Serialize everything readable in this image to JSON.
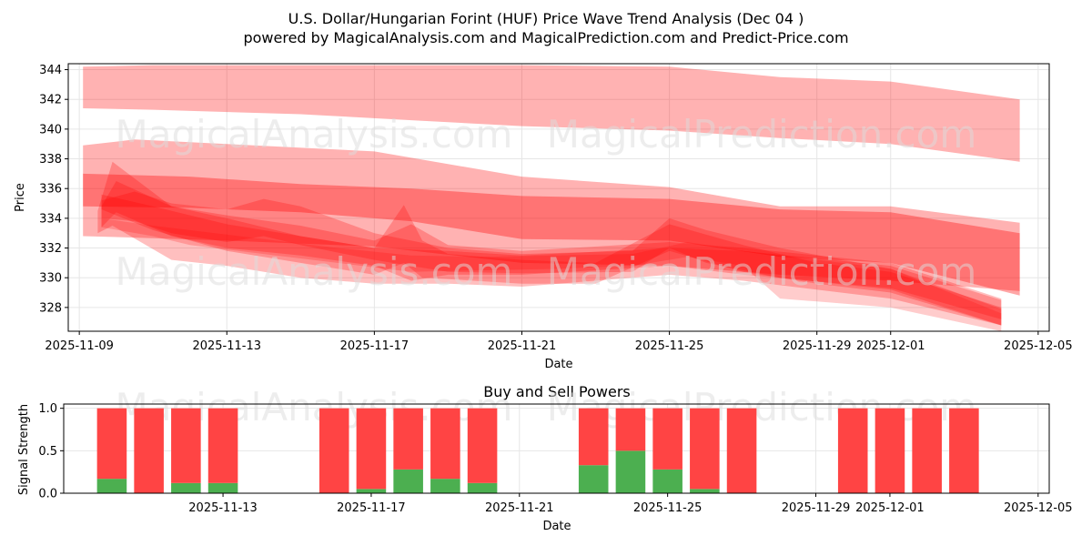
{
  "title_line1": "U.S. Dollar/Hungarian Forint (HUF) Price Wave Trend Analysis (Dec 04 )",
  "title_line2": "powered by MagicalAnalysis.com and MagicalPrediction.com and Predict-Price.com",
  "watermarks": [
    "MagicalAnalysis.com",
    "MagicalPrediction.com"
  ],
  "colors": {
    "band": "#ff0000",
    "buy": "#4caf50",
    "sell": "#ff4444",
    "grid": "#e6e6e6"
  },
  "chart_data": [
    {
      "type": "area",
      "title": "",
      "xlabel": "Date",
      "ylabel": "Price",
      "ylim": [
        326.4,
        344.4
      ],
      "xlim_days": [
        -0.3,
        26.3
      ],
      "y_ticks": [
        328,
        330,
        332,
        334,
        336,
        338,
        340,
        342,
        344
      ],
      "x_ticks": [
        {
          "day": 0,
          "label": "2025-11-09"
        },
        {
          "day": 4,
          "label": "2025-11-13"
        },
        {
          "day": 8,
          "label": "2025-11-17"
        },
        {
          "day": 12,
          "label": "2025-11-21"
        },
        {
          "day": 16,
          "label": "2025-11-25"
        },
        {
          "day": 20,
          "label": "2025-11-29"
        },
        {
          "day": 22,
          "label": "2025-12-01"
        },
        {
          "day": 26,
          "label": "2025-12-05"
        }
      ],
      "series": [
        {
          "name": "band-1",
          "opacity": 0.3,
          "x": [
            0.1,
            2,
            6,
            9,
            12,
            16,
            19,
            22,
            25.5
          ],
          "upper": [
            344.2,
            344.3,
            344.3,
            344.3,
            344.3,
            344.2,
            343.5,
            343.2,
            342.0
          ],
          "lower": [
            341.4,
            341.3,
            341.0,
            340.6,
            340.2,
            339.9,
            339.4,
            339.0,
            337.8
          ]
        },
        {
          "name": "band-2",
          "opacity": 0.3,
          "x": [
            0.1,
            1.5,
            4,
            8,
            12,
            16,
            19,
            22,
            25.5
          ],
          "upper": [
            338.9,
            339.3,
            339.0,
            338.5,
            336.8,
            336.1,
            334.8,
            334.8,
            333.7
          ],
          "lower": [
            332.8,
            332.7,
            332.5,
            332.1,
            331.0,
            330.8,
            330.2,
            329.8,
            329.1
          ]
        },
        {
          "name": "band-3",
          "opacity": 0.35,
          "x": [
            0.1,
            3,
            6,
            9,
            12,
            16,
            19,
            22,
            25.5
          ],
          "upper": [
            337.0,
            336.8,
            336.3,
            336.0,
            335.5,
            335.3,
            334.6,
            334.4,
            333.0
          ],
          "lower": [
            334.8,
            334.7,
            334.4,
            333.8,
            332.6,
            332.5,
            331.4,
            331.0,
            328.8
          ]
        },
        {
          "name": "band-4",
          "opacity": 0.25,
          "x": [
            0.5,
            0.9,
            2.5,
            4,
            6,
            8,
            10,
            12,
            16,
            18,
            22,
            25
          ],
          "upper": [
            334.5,
            337.8,
            334.8,
            334.0,
            332.8,
            332.0,
            331.8,
            331.5,
            332.0,
            331.8,
            330.8,
            328.5
          ],
          "lower": [
            333.0,
            333.5,
            331.2,
            330.8,
            330.0,
            329.6,
            329.6,
            329.4,
            330.2,
            329.8,
            328.6,
            326.8
          ]
        },
        {
          "name": "band-5",
          "opacity": 0.25,
          "x": [
            0.6,
            1,
            2.5,
            4,
            6,
            8,
            9,
            10,
            12,
            16,
            18,
            22,
            25
          ],
          "upper": [
            334.8,
            336.5,
            334.8,
            334.2,
            333.5,
            332.5,
            333.6,
            332.2,
            331.8,
            332.4,
            332.0,
            331.0,
            328.6
          ],
          "lower": [
            333.4,
            334.4,
            332.8,
            332.0,
            331.5,
            330.8,
            329.8,
            330.2,
            330.2,
            330.8,
            330.2,
            329.3,
            327.2
          ]
        },
        {
          "name": "band-6",
          "opacity": 0.25,
          "x": [
            0.6,
            1.5,
            2.5,
            4,
            5,
            6,
            8,
            10,
            12,
            15,
            16,
            17,
            19,
            22,
            25
          ],
          "upper": [
            335.2,
            335.8,
            335.0,
            334.6,
            335.3,
            334.8,
            333.0,
            332.0,
            331.6,
            331.8,
            334.0,
            333.2,
            332.0,
            330.6,
            327.9
          ],
          "lower": [
            334.0,
            333.8,
            333.0,
            332.4,
            332.8,
            332.2,
            331.2,
            330.4,
            330.3,
            330.4,
            332.0,
            331.0,
            330.0,
            329.2,
            326.8
          ]
        },
        {
          "name": "band-7",
          "opacity": 0.25,
          "x": [
            0.6,
            2,
            4,
            6,
            8,
            8.8,
            9.3,
            10,
            12,
            14,
            16,
            18,
            20,
            22,
            25
          ],
          "upper": [
            335.6,
            334.8,
            333.6,
            332.8,
            332.0,
            334.9,
            332.5,
            331.6,
            331.2,
            331.0,
            333.6,
            332.2,
            331.0,
            330.4,
            328.0
          ],
          "lower": [
            334.6,
            333.2,
            331.8,
            331.0,
            330.2,
            331.0,
            330.0,
            329.9,
            329.6,
            329.6,
            331.8,
            330.4,
            329.6,
            329.0,
            326.8
          ]
        },
        {
          "name": "band-8",
          "opacity": 0.2,
          "x": [
            0.6,
            2,
            3,
            5,
            7,
            9,
            11,
            13,
            15,
            16.5,
            18,
            19,
            20,
            22,
            25
          ],
          "upper": [
            334.0,
            333.5,
            333.2,
            332.6,
            332.0,
            331.5,
            331.4,
            331.5,
            331.6,
            332.4,
            331.8,
            331.5,
            331.2,
            330.6,
            327.6
          ],
          "lower": [
            333.4,
            332.8,
            332.2,
            331.6,
            331.0,
            330.4,
            330.5,
            330.6,
            330.8,
            331.4,
            330.8,
            328.6,
            328.4,
            328.0,
            326.4
          ]
        }
      ]
    },
    {
      "type": "bar",
      "title": "Buy and Sell Powers",
      "xlabel": "Date",
      "ylabel": "Signal Strength",
      "ylim": [
        0,
        1.05
      ],
      "xlim_days": [
        -0.3,
        26.3
      ],
      "y_ticks": [
        0.0,
        0.5,
        1.0
      ],
      "y_tick_labels": [
        "0.0",
        "0.5",
        "1.0"
      ],
      "x_ticks": [
        {
          "day": 4,
          "label": "2025-11-13"
        },
        {
          "day": 8,
          "label": "2025-11-17"
        },
        {
          "day": 12,
          "label": "2025-11-21"
        },
        {
          "day": 16,
          "label": "2025-11-25"
        },
        {
          "day": 20,
          "label": "2025-11-29"
        },
        {
          "day": 22,
          "label": "2025-12-01"
        },
        {
          "day": 26,
          "label": "2025-12-05"
        }
      ],
      "days": [
        1,
        2,
        3,
        4,
        7,
        8,
        9,
        10,
        11,
        14,
        15,
        16,
        17,
        18,
        21,
        22,
        23,
        24
      ],
      "buy": [
        0.17,
        0.0,
        0.12,
        0.12,
        0.0,
        0.05,
        0.28,
        0.17,
        0.12,
        0.33,
        0.5,
        0.28,
        0.05,
        0.0,
        0.0,
        0.0,
        0.0,
        0.0
      ],
      "sell": [
        0.83,
        1.0,
        0.88,
        0.88,
        1.0,
        0.95,
        0.72,
        0.83,
        0.88,
        0.67,
        0.5,
        0.72,
        0.95,
        1.0,
        1.0,
        1.0,
        1.0,
        1.0
      ],
      "legend": "none"
    }
  ]
}
